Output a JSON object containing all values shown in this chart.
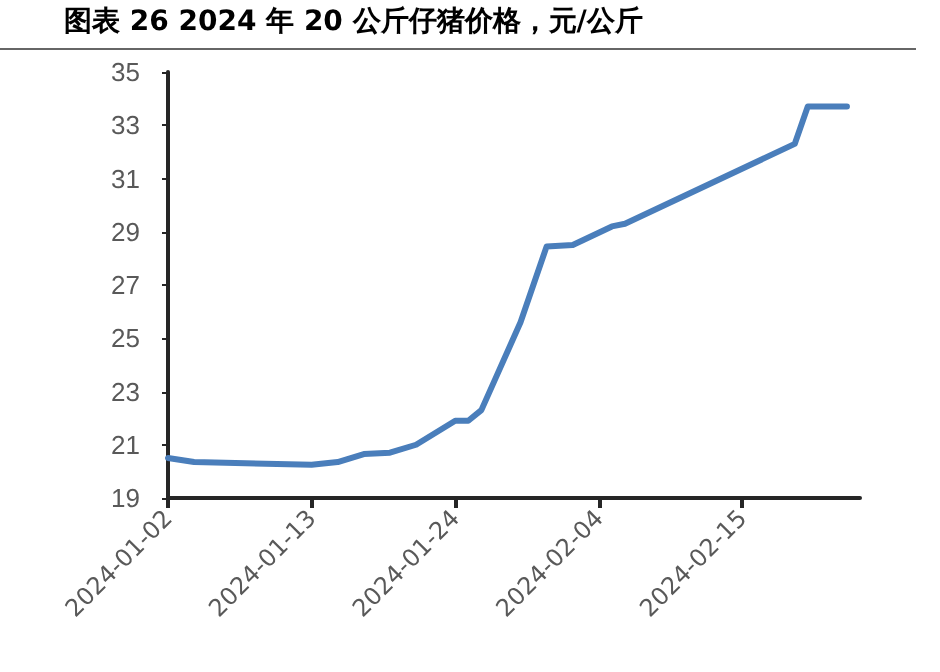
{
  "chart_data": {
    "type": "line",
    "title": "图表 26 2024 年 20 公斤仔猪价格，元/公斤",
    "x": [
      "2024-01-02",
      "2024-01-04",
      "2024-01-13",
      "2024-01-15",
      "2024-01-17",
      "2024-01-19",
      "2024-01-21",
      "2024-01-23",
      "2024-01-24",
      "2024-01-25",
      "2024-01-26",
      "2024-01-27",
      "2024-01-29",
      "2024-01-31",
      "2024-02-02",
      "2024-02-05",
      "2024-02-06",
      "2024-02-19",
      "2024-02-20",
      "2024-02-23"
    ],
    "series": [
      {
        "color": "#4a7ebb",
        "values": [
          20.5,
          20.35,
          20.25,
          20.35,
          20.65,
          20.7,
          21.0,
          21.6,
          21.9,
          21.9,
          22.3,
          23.4,
          25.6,
          28.45,
          28.5,
          29.2,
          29.3,
          32.3,
          33.7,
          33.7
        ]
      }
    ],
    "xlim": [
      "2024-01-02",
      "2024-02-24"
    ],
    "xticks": [
      "2024-01-02",
      "2024-01-13",
      "2024-01-24",
      "2024-02-04",
      "2024-02-15"
    ],
    "ylim": [
      19,
      35
    ],
    "yticks": [
      19,
      21,
      23,
      25,
      27,
      29,
      31,
      33,
      35
    ],
    "grid": false,
    "marker": "none",
    "line_style": "solid"
  }
}
